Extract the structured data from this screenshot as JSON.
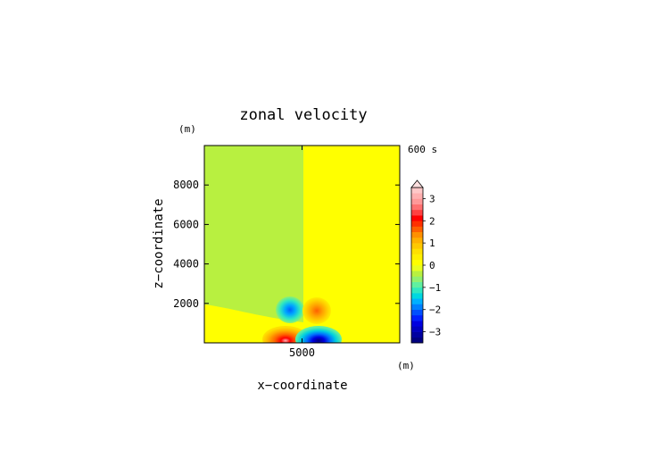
{
  "chart_data": {
    "type": "heatmap",
    "title": "zonal velocity",
    "xlabel": "x−coordinate",
    "ylabel": "z−coordinate",
    "x_unit": "(m)",
    "y_unit": "(m)",
    "time_label": "600 s",
    "xlim": [
      0,
      10000
    ],
    "ylim": [
      0,
      10000
    ],
    "x_ticks": [
      {
        "value": 5000,
        "label": "5000"
      }
    ],
    "y_ticks": [
      {
        "value": 2000,
        "label": "2000"
      },
      {
        "value": 4000,
        "label": "4000"
      },
      {
        "value": 6000,
        "label": "6000"
      },
      {
        "value": 8000,
        "label": "8000"
      }
    ],
    "colorbar": {
      "levels": [
        -3.5,
        -3.25,
        -3.0,
        -2.75,
        -2.5,
        -2.25,
        -2.0,
        -1.75,
        -1.5,
        -1.25,
        -1.0,
        -0.75,
        -0.5,
        -0.25,
        0.0,
        0.25,
        0.5,
        0.75,
        1.0,
        1.25,
        1.5,
        1.75,
        2.0,
        2.25,
        2.5,
        2.75,
        3.0,
        3.25,
        3.5
      ],
      "colors": [
        "#000080",
        "#0000a0",
        "#0000c0",
        "#0000e0",
        "#0020ff",
        "#0050ff",
        "#0080ff",
        "#00b0ff",
        "#00d8e0",
        "#30e8c0",
        "#60f0a0",
        "#90f070",
        "#b8f040",
        "#e8ff20",
        "#ffff00",
        "#fff000",
        "#ffe000",
        "#ffc800",
        "#ffb000",
        "#ff9000",
        "#ff6000",
        "#ff3000",
        "#ff0000",
        "#ff4040",
        "#ff7070",
        "#ff9898",
        "#ffb0b0",
        "#ffc8c8"
      ],
      "tick_labels": [
        {
          "value": -3,
          "label": "−3"
        },
        {
          "value": -2,
          "label": "−2"
        },
        {
          "value": -1,
          "label": "−1"
        },
        {
          "value": 0,
          "label": "0"
        },
        {
          "value": 1,
          "label": "1"
        },
        {
          "value": 2,
          "label": "2"
        },
        {
          "value": 3,
          "label": "3"
        }
      ],
      "extend": "max"
    },
    "features": [
      {
        "name": "background-left",
        "x_range": [
          0,
          5000
        ],
        "z_range": [
          2000,
          10000
        ],
        "value": -0.1
      },
      {
        "name": "background-right",
        "x_range": [
          5000,
          10000
        ],
        "z_range": [
          2000,
          10000
        ],
        "value": 0.1
      },
      {
        "name": "near-surface-band",
        "z_max": 2000,
        "value": 0.1
      },
      {
        "name": "upper-negative-lobe",
        "x": 4400,
        "z": 1600,
        "value": -1.5
      },
      {
        "name": "upper-positive-lobe",
        "x": 5700,
        "z": 1600,
        "value": 1.5
      },
      {
        "name": "lower-positive-core",
        "x": 4300,
        "z": 200,
        "value": 3.0
      },
      {
        "name": "lower-negative-core",
        "x": 5600,
        "z": 200,
        "value": -3.0
      }
    ]
  }
}
